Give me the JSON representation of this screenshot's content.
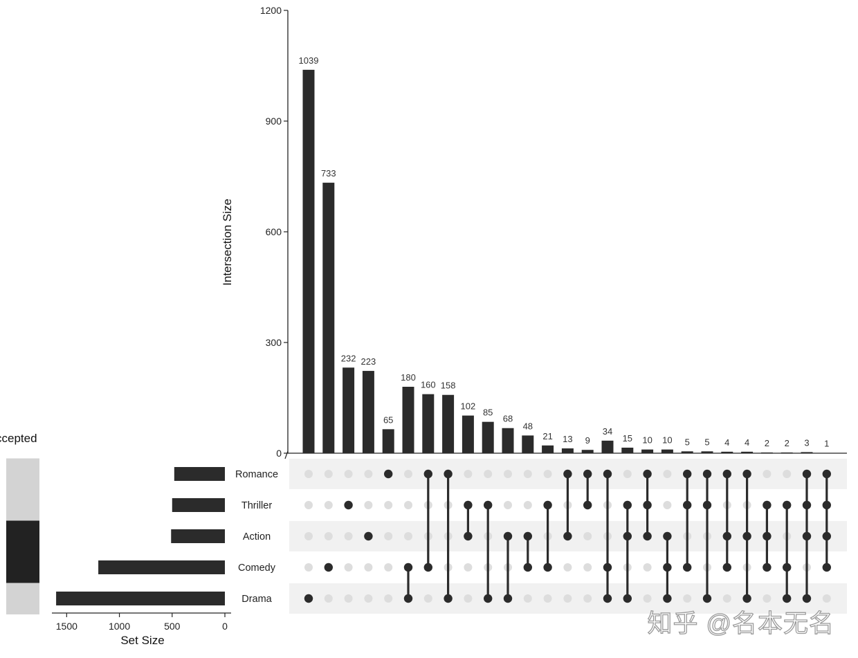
{
  "chart_data": {
    "type": "upset",
    "y_axis_title": "Intersection Size",
    "y_ticks": [
      0,
      300,
      600,
      900,
      1200
    ],
    "y_range": [
      0,
      1200
    ],
    "sets": [
      "Romance",
      "Thriller",
      "Action",
      "Comedy",
      "Drama"
    ],
    "set_sizes": [
      480,
      500,
      510,
      1200,
      1600
    ],
    "set_size_axis_title": "Set Size",
    "set_size_ticks": [
      1500,
      1000,
      500,
      0
    ],
    "set_size_range": [
      0,
      1650
    ],
    "intersections": [
      {
        "value": 1039,
        "label": "1039",
        "sets": [
          "Drama"
        ]
      },
      {
        "value": 733,
        "label": "733",
        "sets": [
          "Comedy"
        ]
      },
      {
        "value": 232,
        "label": "232",
        "sets": [
          "Thriller"
        ]
      },
      {
        "value": 223,
        "label": "223",
        "sets": [
          "Action"
        ]
      },
      {
        "value": 65,
        "label": "65",
        "sets": [
          "Romance"
        ]
      },
      {
        "value": 180,
        "label": "180",
        "sets": [
          "Comedy",
          "Drama"
        ]
      },
      {
        "value": 160,
        "label": "160",
        "sets": [
          "Romance",
          "Comedy"
        ]
      },
      {
        "value": 158,
        "label": "158",
        "sets": [
          "Romance",
          "Drama"
        ]
      },
      {
        "value": 102,
        "label": "102",
        "sets": [
          "Thriller",
          "Action"
        ]
      },
      {
        "value": 85,
        "label": "85",
        "sets": [
          "Thriller",
          "Drama"
        ]
      },
      {
        "value": 68,
        "label": "68",
        "sets": [
          "Action",
          "Drama"
        ]
      },
      {
        "value": 48,
        "label": "48",
        "sets": [
          "Action",
          "Comedy"
        ]
      },
      {
        "value": 21,
        "label": "21",
        "sets": [
          "Thriller",
          "Comedy"
        ]
      },
      {
        "value": 13,
        "label": "13",
        "sets": [
          "Romance",
          "Action"
        ]
      },
      {
        "value": 9,
        "label": "9",
        "sets": [
          "Romance",
          "Thriller"
        ]
      },
      {
        "value": 34,
        "label": "34",
        "sets": [
          "Romance",
          "Comedy",
          "Drama"
        ]
      },
      {
        "value": 15,
        "label": "15",
        "sets": [
          "Thriller",
          "Action",
          "Drama"
        ]
      },
      {
        "value": 10,
        "label": "10",
        "sets": [
          "Romance",
          "Thriller",
          "Action"
        ]
      },
      {
        "value": 10,
        "label": "10",
        "sets": [
          "Action",
          "Comedy",
          "Drama"
        ]
      },
      {
        "value": 5,
        "label": "5",
        "sets": [
          "Romance",
          "Thriller",
          "Comedy"
        ]
      },
      {
        "value": 5,
        "label": "5",
        "sets": [
          "Romance",
          "Thriller",
          "Drama"
        ]
      },
      {
        "value": 4,
        "label": "4",
        "sets": [
          "Romance",
          "Action",
          "Comedy"
        ]
      },
      {
        "value": 4,
        "label": "4",
        "sets": [
          "Romance",
          "Action",
          "Drama"
        ]
      },
      {
        "value": 2,
        "label": "2",
        "sets": [
          "Thriller",
          "Action",
          "Comedy"
        ]
      },
      {
        "value": 2,
        "label": "2",
        "sets": [
          "Thriller",
          "Comedy",
          "Drama"
        ]
      },
      {
        "value": 3,
        "label": "3",
        "sets": [
          "Romance",
          "Thriller",
          "Action",
          "Drama"
        ]
      },
      {
        "value": 1,
        "label": "1",
        "sets": [
          "Romance",
          "Thriller",
          "Action",
          "Comedy"
        ]
      }
    ],
    "side_panel": {
      "title": "ccepted",
      "highlighted_sets": [
        "Action",
        "Comedy"
      ]
    }
  },
  "watermark": "知乎 @名本无名",
  "colors": {
    "bar": "#2b2b2b",
    "dot_active": "#2b2b2b",
    "dot_inactive": "#dddddd",
    "row_shade": "#f1f1f1",
    "panel_light": "#d3d3d3",
    "panel_dark": "#222222"
  }
}
